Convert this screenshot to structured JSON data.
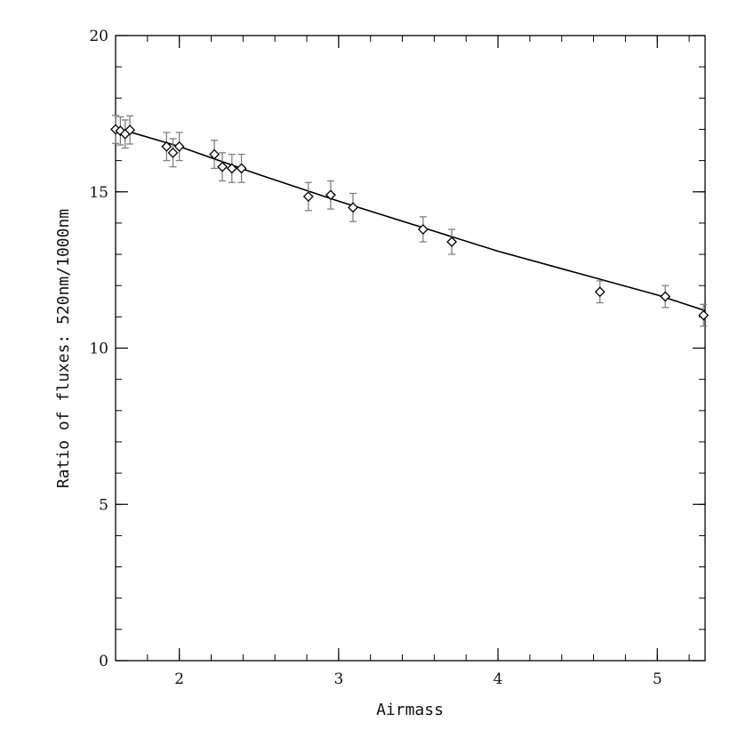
{
  "chart_data": {
    "type": "scatter",
    "xlabel": "Airmass",
    "ylabel": "Ratio of fluxes: 520nm/1000nm",
    "xlim": [
      1.6,
      5.3
    ],
    "ylim": [
      0,
      20
    ],
    "x_ticks": [
      "2",
      "3",
      "4",
      "5"
    ],
    "y_ticks": [
      "0",
      "5",
      "10",
      "15",
      "20"
    ],
    "x_tick_values": [
      2,
      3,
      4,
      5
    ],
    "y_tick_values": [
      0,
      5,
      10,
      15,
      20
    ],
    "x_minor_step": 0.2,
    "y_minor_step": 1,
    "grid": false,
    "legend": "none",
    "marker": "diamond",
    "error_bar_color": "#808080",
    "line_color": "#000000",
    "series": [
      {
        "type": "scatter_with_errorbars",
        "points": [
          {
            "x": 1.6,
            "y": 17.0,
            "err": 0.45
          },
          {
            "x": 1.63,
            "y": 16.95,
            "err": 0.45
          },
          {
            "x": 1.66,
            "y": 16.85,
            "err": 0.45
          },
          {
            "x": 1.69,
            "y": 16.98,
            "err": 0.45
          },
          {
            "x": 1.92,
            "y": 16.45,
            "err": 0.45
          },
          {
            "x": 1.96,
            "y": 16.25,
            "err": 0.45
          },
          {
            "x": 2.0,
            "y": 16.45,
            "err": 0.45
          },
          {
            "x": 2.22,
            "y": 16.2,
            "err": 0.45
          },
          {
            "x": 2.27,
            "y": 15.8,
            "err": 0.45
          },
          {
            "x": 2.33,
            "y": 15.75,
            "err": 0.45
          },
          {
            "x": 2.39,
            "y": 15.75,
            "err": 0.45
          },
          {
            "x": 2.81,
            "y": 14.85,
            "err": 0.45
          },
          {
            "x": 2.95,
            "y": 14.9,
            "err": 0.45
          },
          {
            "x": 3.09,
            "y": 14.5,
            "err": 0.45
          },
          {
            "x": 3.53,
            "y": 13.8,
            "err": 0.4
          },
          {
            "x": 3.71,
            "y": 13.4,
            "err": 0.4
          },
          {
            "x": 4.64,
            "y": 11.8,
            "err": 0.35
          },
          {
            "x": 5.05,
            "y": 11.65,
            "err": 0.35
          },
          {
            "x": 5.29,
            "y": 11.05,
            "err": 0.35
          }
        ]
      },
      {
        "type": "line",
        "x": [
          1.6,
          2.0,
          2.5,
          3.0,
          3.5,
          4.0,
          4.5,
          5.0,
          5.3
        ],
        "y": [
          17.05,
          16.45,
          15.55,
          14.7,
          13.9,
          13.1,
          12.4,
          11.7,
          11.2
        ]
      }
    ]
  }
}
